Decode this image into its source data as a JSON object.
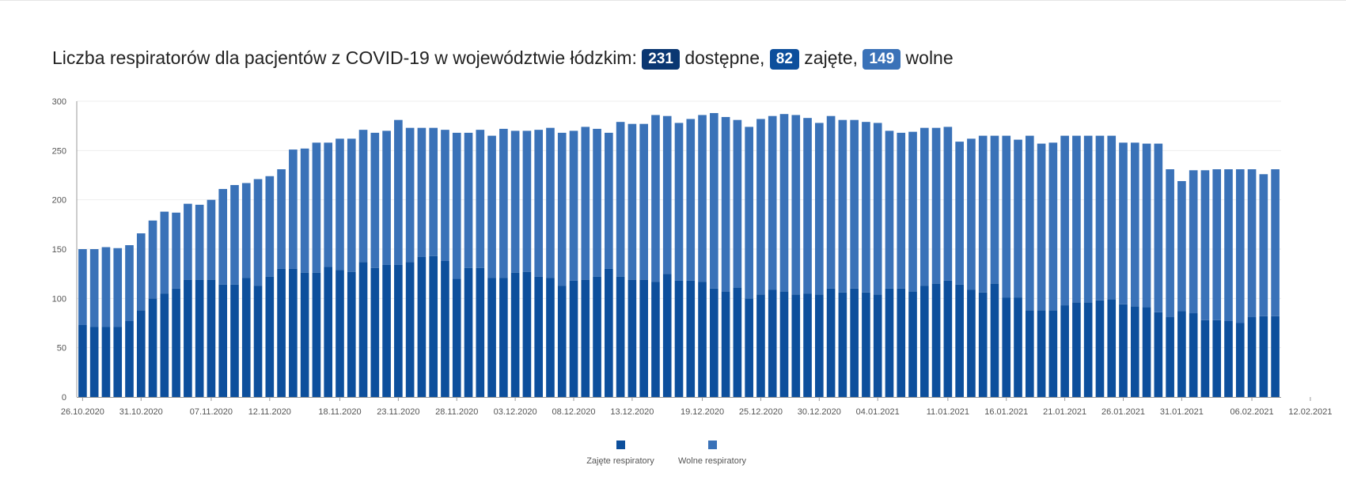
{
  "header": {
    "title_prefix": "Liczba respiratorów dla pacjentów z COVID-19 w województwie łódzkim:",
    "total_value": "231",
    "total_label": "dostępne,",
    "occupied_value": "82",
    "occupied_label": "zajęte,",
    "free_value": "149",
    "free_label": "wolne"
  },
  "colors": {
    "occupied": "#0d4f9c",
    "free": "#3a72b8",
    "badge_total": "#0a3772",
    "badge_occupied": "#0d4f9c",
    "badge_free": "#3a72b8",
    "grid": "#eeeeee",
    "axis": "#999999"
  },
  "chart_data": {
    "type": "bar",
    "stacked": true,
    "x_start_date": "26.10.2020",
    "x_tick_labels": [
      "26.10.2020",
      "31.10.2020",
      "07.11.2020",
      "12.11.2020",
      "18.11.2020",
      "23.11.2020",
      "28.11.2020",
      "03.12.2020",
      "08.12.2020",
      "13.12.2020",
      "19.12.2020",
      "25.12.2020",
      "30.12.2020",
      "04.01.2021",
      "11.01.2021",
      "16.01.2021",
      "21.01.2021",
      "26.01.2021",
      "31.01.2021",
      "06.02.2021",
      "12.02.2021"
    ],
    "x_tick_bar_index": [
      0,
      5,
      11,
      16,
      22,
      27,
      32,
      37,
      42,
      47,
      53,
      58,
      63,
      68,
      74,
      79,
      84,
      89,
      94,
      100,
      105
    ],
    "ylim": [
      0,
      300
    ],
    "yticks": [
      0,
      50,
      100,
      150,
      200,
      250,
      300
    ],
    "grid": true,
    "legend_position": "bottom-center",
    "series": [
      {
        "name": "Zajęte respiratory",
        "values": [
          73,
          71,
          71,
          71,
          77,
          88,
          100,
          105,
          110,
          119,
          119,
          119,
          114,
          114,
          121,
          113,
          122,
          130,
          130,
          126,
          126,
          132,
          129,
          127,
          137,
          131,
          134,
          134,
          137,
          142,
          143,
          138,
          120,
          131,
          131,
          121,
          121,
          126,
          127,
          122,
          121,
          113,
          118,
          119,
          122,
          130,
          122,
          119,
          119,
          117,
          125,
          118,
          118,
          117,
          110,
          107,
          111,
          100,
          104,
          109,
          107,
          104,
          105,
          104,
          110,
          106,
          110,
          106,
          104,
          110,
          110,
          107,
          113,
          115,
          118,
          114,
          109,
          106,
          115,
          101,
          101,
          88,
          88,
          88,
          93,
          96,
          96,
          98,
          99,
          94,
          92,
          91,
          86,
          81,
          87,
          85,
          78,
          78,
          77,
          75,
          81,
          82,
          82
        ]
      },
      {
        "name": "Wolne respiratory",
        "values": [
          77,
          79,
          81,
          80,
          77,
          78,
          79,
          83,
          77,
          77,
          76,
          81,
          97,
          101,
          96,
          108,
          102,
          101,
          121,
          126,
          132,
          126,
          133,
          135,
          134,
          137,
          136,
          147,
          136,
          131,
          130,
          133,
          148,
          137,
          140,
          144,
          151,
          144,
          143,
          149,
          152,
          155,
          152,
          155,
          150,
          138,
          157,
          158,
          158,
          169,
          160,
          160,
          164,
          169,
          178,
          177,
          170,
          174,
          178,
          176,
          180,
          182,
          178,
          174,
          175,
          175,
          171,
          173,
          174,
          160,
          158,
          162,
          160,
          158,
          156,
          145,
          153,
          159,
          150,
          164,
          160,
          177,
          169,
          170,
          172,
          169,
          169,
          167,
          166,
          164,
          166,
          166,
          171,
          150,
          132,
          145,
          152,
          153,
          154,
          156,
          150,
          144,
          149
        ]
      }
    ]
  }
}
